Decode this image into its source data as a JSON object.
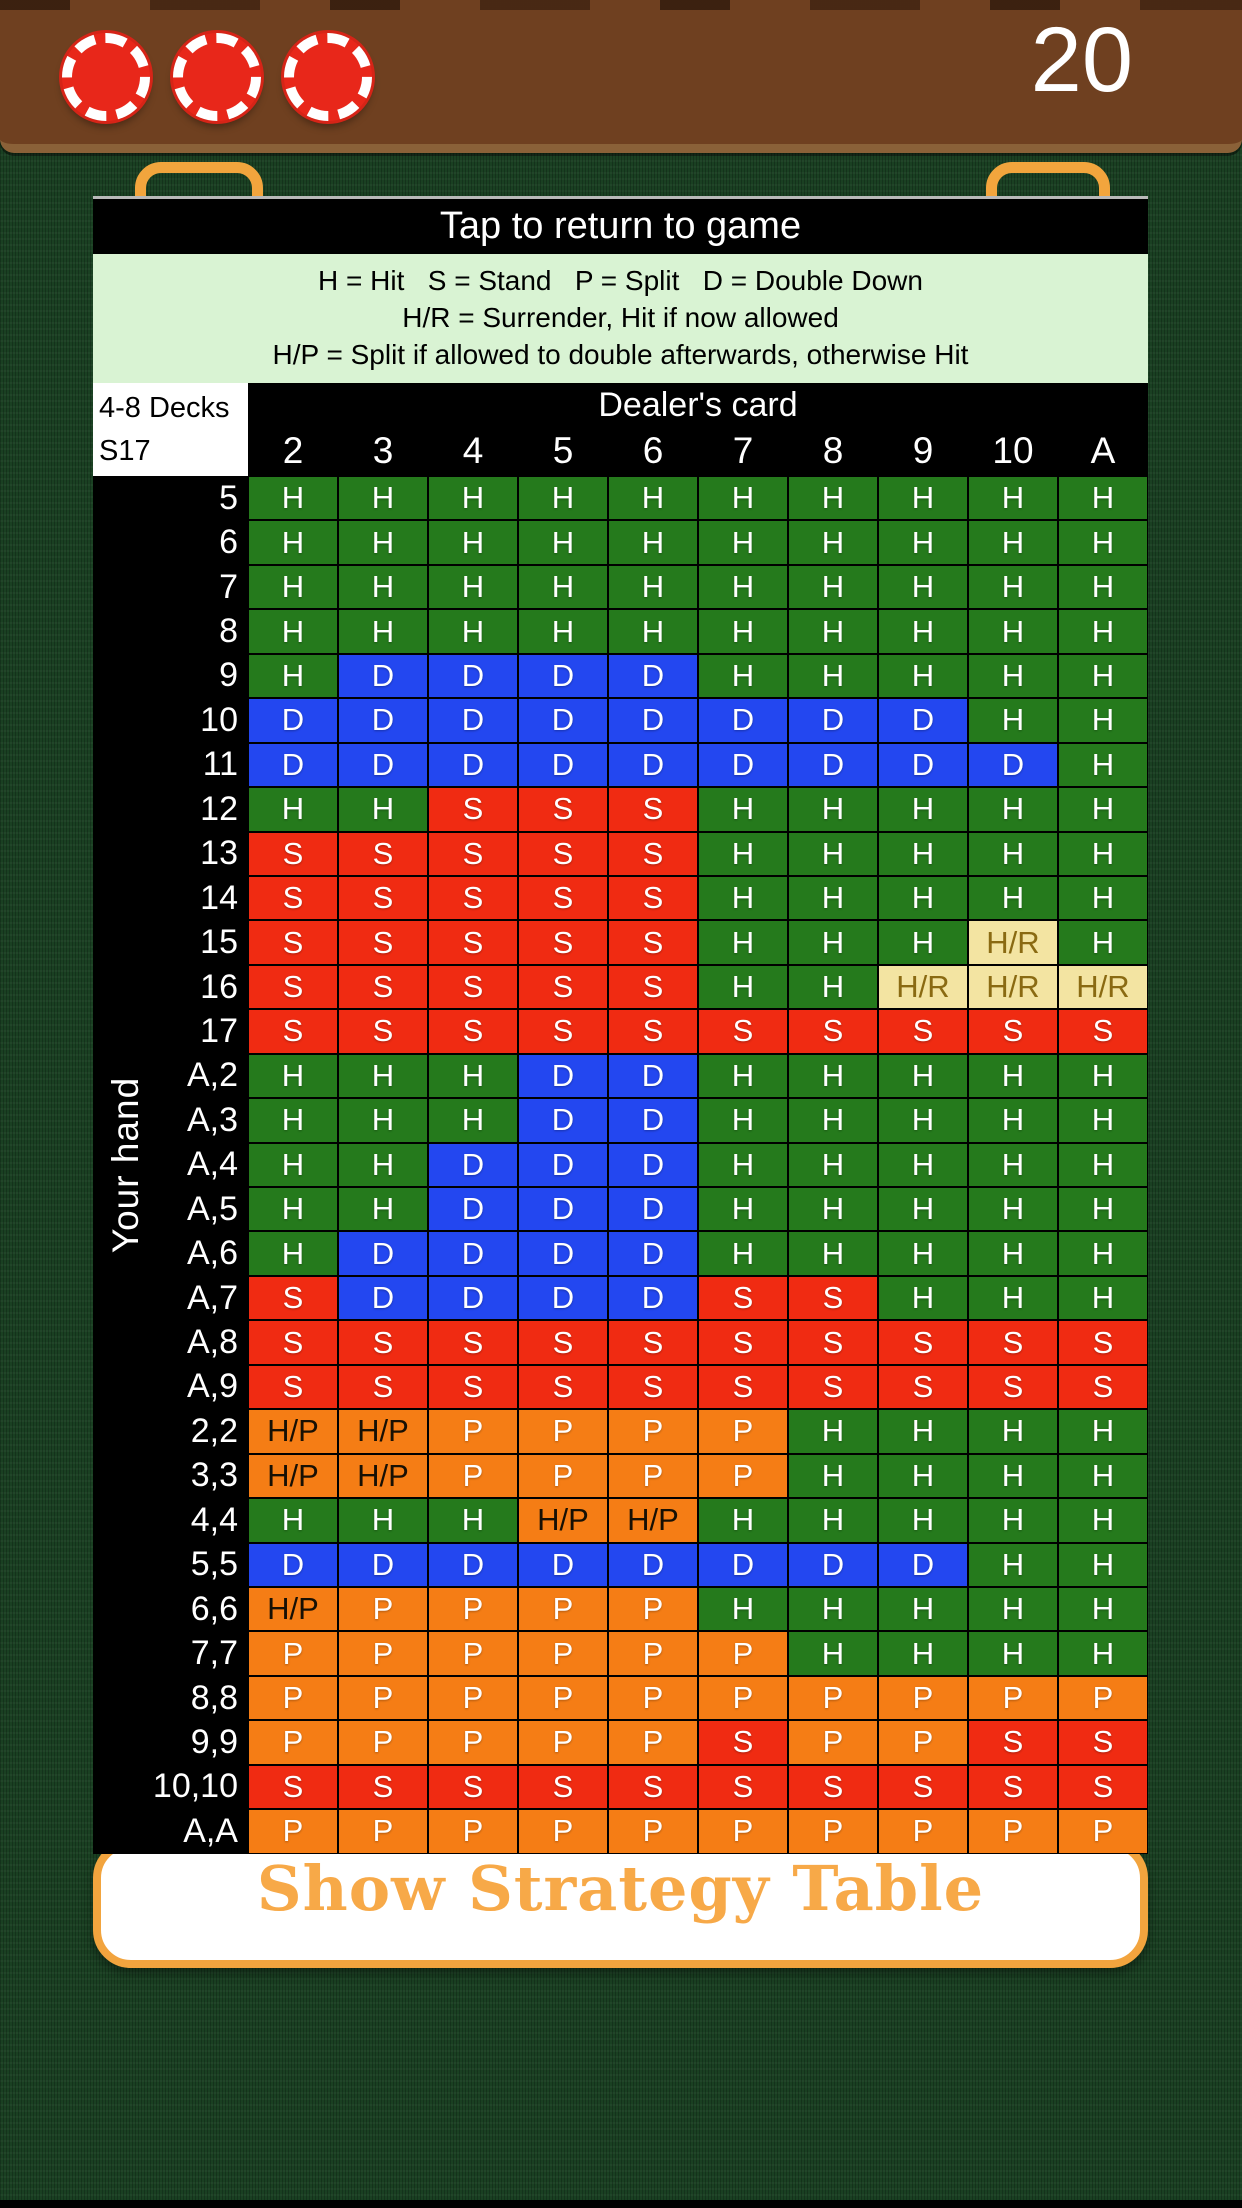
{
  "status_bar": {
    "chip_count": 3,
    "score": "20"
  },
  "overlay": {
    "title": "Tap to return to game",
    "legend_lines": [
      "H = Hit   S = Stand   P = Split   D = Double Down",
      "H/R = Surrender, Hit if now allowed",
      "H/P = Split if allowed to double afterwards, otherwise Hit"
    ],
    "table": {
      "corner_line1": "4-8 Decks",
      "corner_line2": "S17",
      "dealer_header": "Dealer's card",
      "your_hand_label": "Your hand",
      "columns": [
        "2",
        "3",
        "4",
        "5",
        "6",
        "7",
        "8",
        "9",
        "10",
        "A"
      ],
      "rows": [
        {
          "label": "5",
          "cells": [
            "H",
            "H",
            "H",
            "H",
            "H",
            "H",
            "H",
            "H",
            "H",
            "H"
          ]
        },
        {
          "label": "6",
          "cells": [
            "H",
            "H",
            "H",
            "H",
            "H",
            "H",
            "H",
            "H",
            "H",
            "H"
          ]
        },
        {
          "label": "7",
          "cells": [
            "H",
            "H",
            "H",
            "H",
            "H",
            "H",
            "H",
            "H",
            "H",
            "H"
          ]
        },
        {
          "label": "8",
          "cells": [
            "H",
            "H",
            "H",
            "H",
            "H",
            "H",
            "H",
            "H",
            "H",
            "H"
          ]
        },
        {
          "label": "9",
          "cells": [
            "H",
            "D",
            "D",
            "D",
            "D",
            "H",
            "H",
            "H",
            "H",
            "H"
          ]
        },
        {
          "label": "10",
          "cells": [
            "D",
            "D",
            "D",
            "D",
            "D",
            "D",
            "D",
            "D",
            "H",
            "H"
          ]
        },
        {
          "label": "11",
          "cells": [
            "D",
            "D",
            "D",
            "D",
            "D",
            "D",
            "D",
            "D",
            "D",
            "H"
          ]
        },
        {
          "label": "12",
          "cells": [
            "H",
            "H",
            "S",
            "S",
            "S",
            "H",
            "H",
            "H",
            "H",
            "H"
          ]
        },
        {
          "label": "13",
          "cells": [
            "S",
            "S",
            "S",
            "S",
            "S",
            "H",
            "H",
            "H",
            "H",
            "H"
          ]
        },
        {
          "label": "14",
          "cells": [
            "S",
            "S",
            "S",
            "S",
            "S",
            "H",
            "H",
            "H",
            "H",
            "H"
          ]
        },
        {
          "label": "15",
          "cells": [
            "S",
            "S",
            "S",
            "S",
            "S",
            "H",
            "H",
            "H",
            "H/R",
            "H"
          ]
        },
        {
          "label": "16",
          "cells": [
            "S",
            "S",
            "S",
            "S",
            "S",
            "H",
            "H",
            "H/R",
            "H/R",
            "H/R"
          ]
        },
        {
          "label": "17",
          "cells": [
            "S",
            "S",
            "S",
            "S",
            "S",
            "S",
            "S",
            "S",
            "S",
            "S"
          ]
        },
        {
          "label": "A,2",
          "cells": [
            "H",
            "H",
            "H",
            "D",
            "D",
            "H",
            "H",
            "H",
            "H",
            "H"
          ]
        },
        {
          "label": "A,3",
          "cells": [
            "H",
            "H",
            "H",
            "D",
            "D",
            "H",
            "H",
            "H",
            "H",
            "H"
          ]
        },
        {
          "label": "A,4",
          "cells": [
            "H",
            "H",
            "D",
            "D",
            "D",
            "H",
            "H",
            "H",
            "H",
            "H"
          ]
        },
        {
          "label": "A,5",
          "cells": [
            "H",
            "H",
            "D",
            "D",
            "D",
            "H",
            "H",
            "H",
            "H",
            "H"
          ]
        },
        {
          "label": "A,6",
          "cells": [
            "H",
            "D",
            "D",
            "D",
            "D",
            "H",
            "H",
            "H",
            "H",
            "H"
          ]
        },
        {
          "label": "A,7",
          "cells": [
            "S",
            "D",
            "D",
            "D",
            "D",
            "S",
            "S",
            "H",
            "H",
            "H"
          ]
        },
        {
          "label": "A,8",
          "cells": [
            "S",
            "S",
            "S",
            "S",
            "S",
            "S",
            "S",
            "S",
            "S",
            "S"
          ]
        },
        {
          "label": "A,9",
          "cells": [
            "S",
            "S",
            "S",
            "S",
            "S",
            "S",
            "S",
            "S",
            "S",
            "S"
          ]
        },
        {
          "label": "2,2",
          "cells": [
            "H/P",
            "H/P",
            "P",
            "P",
            "P",
            "P",
            "H",
            "H",
            "H",
            "H"
          ]
        },
        {
          "label": "3,3",
          "cells": [
            "H/P",
            "H/P",
            "P",
            "P",
            "P",
            "P",
            "H",
            "H",
            "H",
            "H"
          ]
        },
        {
          "label": "4,4",
          "cells": [
            "H",
            "H",
            "H",
            "H/P",
            "H/P",
            "H",
            "H",
            "H",
            "H",
            "H"
          ]
        },
        {
          "label": "5,5",
          "cells": [
            "D",
            "D",
            "D",
            "D",
            "D",
            "D",
            "D",
            "D",
            "H",
            "H"
          ]
        },
        {
          "label": "6,6",
          "cells": [
            "H/P",
            "P",
            "P",
            "P",
            "P",
            "H",
            "H",
            "H",
            "H",
            "H"
          ]
        },
        {
          "label": "7,7",
          "cells": [
            "P",
            "P",
            "P",
            "P",
            "P",
            "P",
            "H",
            "H",
            "H",
            "H"
          ]
        },
        {
          "label": "8,8",
          "cells": [
            "P",
            "P",
            "P",
            "P",
            "P",
            "P",
            "P",
            "P",
            "P",
            "P"
          ]
        },
        {
          "label": "9,9",
          "cells": [
            "P",
            "P",
            "P",
            "P",
            "P",
            "S",
            "P",
            "P",
            "S",
            "S"
          ]
        },
        {
          "label": "10,10",
          "cells": [
            "S",
            "S",
            "S",
            "S",
            "S",
            "S",
            "S",
            "S",
            "S",
            "S"
          ]
        },
        {
          "label": "A,A",
          "cells": [
            "P",
            "P",
            "P",
            "P",
            "P",
            "P",
            "P",
            "P",
            "P",
            "P"
          ]
        }
      ]
    }
  },
  "button": {
    "label": "Show Strategy Table"
  },
  "cell_styles": {
    "H": {
      "bg": "#257a1c",
      "fg": "#ffffff"
    },
    "S": {
      "bg": "#f02b12",
      "fg": "#ffffff"
    },
    "D": {
      "bg": "#2347f0",
      "fg": "#ffffff"
    },
    "P": {
      "bg": "#f57d15",
      "fg": "#ffffff"
    },
    "H/R": {
      "bg": "#f3e4a2",
      "fg": "#8a6a12"
    },
    "H/P": {
      "bg": "#f57d15",
      "fg": "#181004"
    }
  },
  "colors": {
    "felt_green": "#1a4022",
    "top_bar_brown": "#6f4020",
    "accent_orange": "#f2a43e",
    "chip_red": "#e8271a",
    "legend_bg": "#d9f3d3",
    "header_bg": "#000000",
    "button_text": "#f7a948"
  }
}
